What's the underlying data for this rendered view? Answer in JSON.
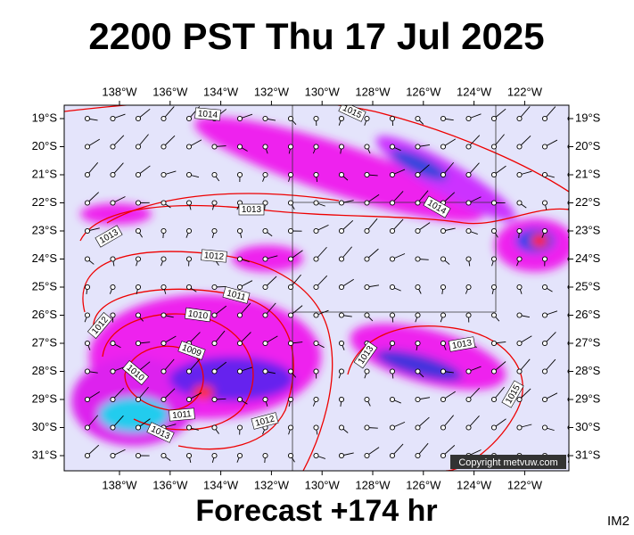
{
  "header": {
    "title": "2200 PST Thu 17 Jul 2025"
  },
  "map": {
    "lon_labels": [
      "138°W",
      "136°W",
      "134°W",
      "132°W",
      "130°W",
      "128°W",
      "126°W",
      "124°W",
      "122°W"
    ],
    "lat_labels": [
      "19°S",
      "20°S",
      "21°S",
      "22°S",
      "23°S",
      "24°S",
      "25°S",
      "26°S",
      "27°S",
      "28°S",
      "29°S",
      "30°S",
      "31°S"
    ],
    "isobar_labels": [
      "1014",
      "1015",
      "1013",
      "1013",
      "1014",
      "1012",
      "1011",
      "1010",
      "1012",
      "1009",
      "1010",
      "1011",
      "1012",
      "1013",
      "1013",
      "1013",
      "1015"
    ],
    "copyright": "Copyright metvuw.com"
  },
  "footer": {
    "forecast": "Forecast +174 hr",
    "id": "IM2"
  }
}
